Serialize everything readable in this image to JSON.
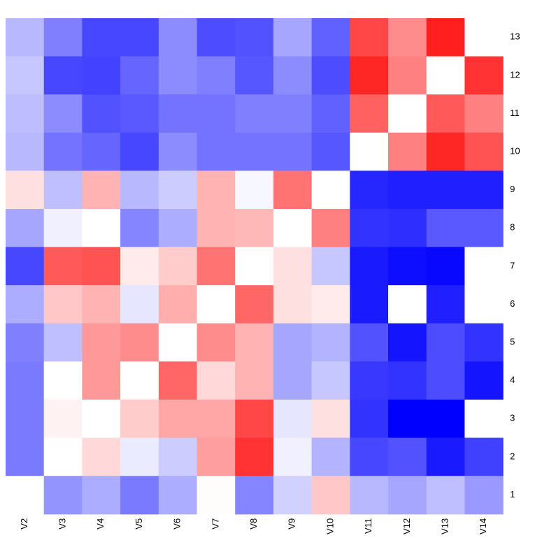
{
  "chart_data": {
    "type": "heatmap",
    "title": "",
    "xlabel": "",
    "ylabel": "",
    "x_categories": [
      "V2",
      "V3",
      "V4",
      "V5",
      "V6",
      "V7",
      "V8",
      "V9",
      "V10",
      "V11",
      "V12",
      "V13",
      "V14"
    ],
    "y_categories": [
      "13",
      "12",
      "11",
      "10",
      "9",
      "8",
      "7",
      "6",
      "5",
      "4",
      "3",
      "2",
      "1"
    ],
    "color_scale": {
      "low": "#0000ff",
      "mid": "#ffffff",
      "high": "#ff0000",
      "domain": [
        -1,
        0,
        1
      ]
    },
    "values": [
      [
        -0.28,
        -0.5,
        -0.72,
        -0.72,
        -0.45,
        -0.7,
        -0.68,
        -0.35,
        -0.62,
        0.72,
        0.45,
        0.88,
        null
      ],
      [
        -0.22,
        -0.72,
        -0.74,
        -0.6,
        -0.45,
        -0.5,
        -0.66,
        -0.45,
        -0.7,
        0.85,
        0.5,
        null,
        0.8
      ],
      [
        -0.26,
        -0.45,
        -0.68,
        -0.65,
        -0.55,
        -0.55,
        -0.5,
        -0.5,
        -0.62,
        0.62,
        null,
        0.65,
        0.5
      ],
      [
        -0.28,
        -0.55,
        -0.6,
        -0.72,
        -0.45,
        -0.55,
        -0.55,
        -0.55,
        -0.66,
        null,
        0.5,
        0.85,
        0.68
      ],
      [
        0.12,
        -0.25,
        0.3,
        -0.28,
        -0.2,
        0.3,
        -0.03,
        0.55,
        null,
        -0.85,
        -0.88,
        -0.88,
        -0.88
      ],
      [
        -0.35,
        -0.06,
        0.0,
        -0.48,
        -0.32,
        0.3,
        0.28,
        0.0,
        0.5,
        -0.8,
        -0.82,
        -0.65,
        -0.65
      ],
      [
        -0.72,
        0.65,
        0.68,
        0.08,
        0.2,
        0.55,
        null,
        0.12,
        -0.22,
        -0.9,
        -0.95,
        -0.97,
        null
      ],
      [
        -0.32,
        0.22,
        0.3,
        -0.1,
        0.32,
        null,
        0.6,
        0.12,
        0.08,
        -0.9,
        null,
        -0.88,
        null
      ],
      [
        -0.5,
        -0.25,
        0.4,
        0.45,
        null,
        0.45,
        0.3,
        -0.35,
        -0.3,
        -0.68,
        -0.92,
        -0.7,
        -0.8
      ],
      [
        -0.52,
        null,
        0.4,
        null,
        0.6,
        0.15,
        0.3,
        -0.35,
        -0.22,
        -0.78,
        -0.8,
        -0.7,
        -0.92
      ],
      [
        -0.52,
        0.05,
        null,
        0.2,
        0.35,
        0.35,
        0.72,
        -0.1,
        0.12,
        -0.8,
        -1.0,
        -1.0,
        null
      ],
      [
        -0.52,
        null,
        0.15,
        -0.08,
        -0.2,
        0.38,
        0.8,
        -0.06,
        -0.3,
        -0.72,
        -0.68,
        -0.9,
        -0.75
      ],
      [
        null,
        -0.42,
        -0.32,
        -0.52,
        -0.32,
        0.01,
        -0.48,
        -0.18,
        0.22,
        -0.28,
        -0.35,
        -0.25,
        -0.4
      ]
    ]
  }
}
